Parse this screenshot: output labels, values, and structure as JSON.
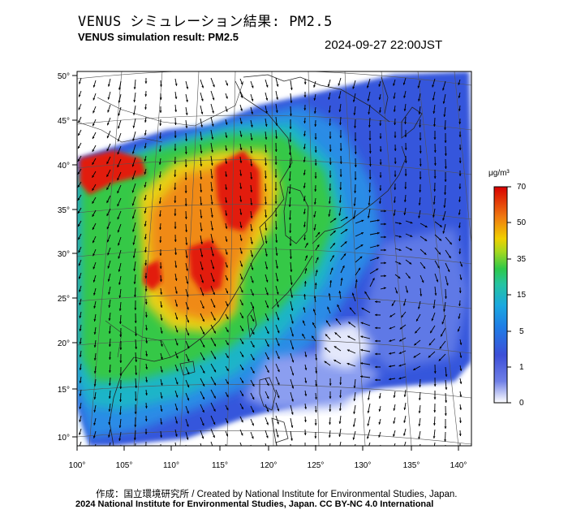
{
  "header": {
    "title_jp": "VENUS シミュレーション結果: PM2.5",
    "title_en": "VENUS simulation result: PM2.5",
    "timestamp": "2024-09-27 22:00JST"
  },
  "map": {
    "lon_labels": [
      "100°",
      "105°",
      "110°",
      "115°",
      "120°",
      "125°",
      "130°",
      "135°",
      "140°"
    ],
    "lat_labels": [
      "10°",
      "15°",
      "20°",
      "25°",
      "30°",
      "35°",
      "40°",
      "45°",
      "50°"
    ]
  },
  "colorbar": {
    "unit": "μg/m³",
    "labels": [
      "0",
      "1",
      "5",
      "15",
      "35",
      "50",
      "70"
    ],
    "colors": [
      "#ffffff",
      "#3d4fd8",
      "#1a9ee0",
      "#2ec94a",
      "#f0d000",
      "#f07a10",
      "#e01010"
    ]
  },
  "credits": {
    "line1": "作成：国立環境研究所 / Created by National Institute for Environmental Studies, Japan.",
    "line2": "2024 National Institute for Environmental Studies, Japan. CC BY-NC 4.0 International"
  },
  "palette": {
    "ocean": "#ffffff",
    "wind_arrow": "#000000",
    "coastline": "#222222"
  }
}
